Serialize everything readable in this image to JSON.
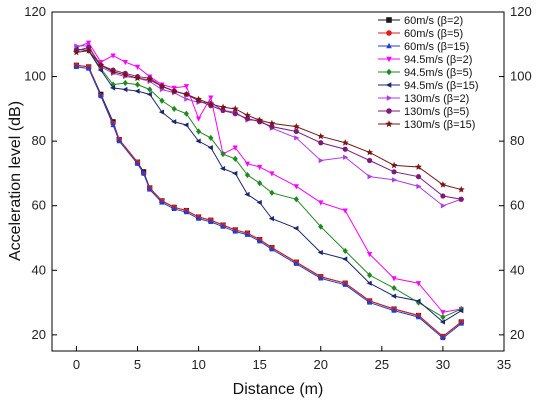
{
  "chart_data": {
    "type": "line",
    "title": "",
    "xlabel": "Distance (m)",
    "ylabel": "Acceleration level (dB)",
    "xlim": [
      -2,
      35
    ],
    "ylim": [
      15,
      120
    ],
    "xticks": [
      0,
      5,
      10,
      15,
      20,
      25,
      30,
      35
    ],
    "yticks": [
      20,
      40,
      60,
      80,
      100,
      120
    ],
    "grid": false,
    "legend_position": "top-right",
    "right_axis_mirrored": true,
    "series": [
      {
        "name": "60m/s (β=2)",
        "color": "#1a1a1a",
        "marker": "square",
        "x": [
          0,
          1,
          2,
          3,
          3.5,
          5,
          5.5,
          6,
          7,
          8,
          9,
          10,
          11,
          12,
          13,
          14,
          15,
          16,
          18,
          20,
          22,
          24,
          26,
          28,
          30,
          31.5
        ],
        "y": [
          103.5,
          103,
          94.5,
          86,
          80.5,
          73.5,
          70.5,
          65.5,
          61.5,
          59.5,
          58.5,
          56.5,
          55.5,
          54,
          52.5,
          51.5,
          49.5,
          47,
          42.5,
          38,
          36,
          30.5,
          28,
          26,
          19.5,
          24
        ]
      },
      {
        "name": "60m/s (β=5)",
        "color": "#e31a1c",
        "marker": "circle",
        "x": [
          0,
          1,
          2,
          3,
          3.5,
          5,
          5.5,
          6,
          7,
          8,
          9,
          10,
          11,
          12,
          13,
          14,
          15,
          16,
          18,
          20,
          22,
          24,
          26,
          28,
          30,
          31.5
        ],
        "y": [
          103.5,
          103,
          94,
          85.5,
          80.5,
          73.5,
          70,
          65.5,
          61.5,
          59.5,
          58.5,
          56.5,
          55.5,
          54,
          52.5,
          51.5,
          49.5,
          47,
          42.5,
          38,
          36,
          30.5,
          28,
          26,
          19.5,
          24
        ]
      },
      {
        "name": "60m/s (β=15)",
        "color": "#1f3fd6",
        "marker": "triangle-up",
        "x": [
          0,
          1,
          2,
          3,
          3.5,
          5,
          5.5,
          6,
          7,
          8,
          9,
          10,
          11,
          12,
          13,
          14,
          15,
          16,
          18,
          20,
          22,
          24,
          26,
          28,
          30,
          31.5
        ],
        "y": [
          103,
          102.5,
          94,
          85,
          80,
          73,
          70,
          65,
          61,
          59,
          58,
          56,
          55,
          53.5,
          52,
          51,
          49,
          46.5,
          42,
          37.5,
          35.5,
          30,
          27.5,
          25.5,
          19,
          23.5
        ]
      },
      {
        "name": "94.5m/s (β=2)",
        "color": "#ff00ff",
        "marker": "triangle-down",
        "x": [
          0,
          1,
          2,
          3,
          4,
          5,
          6,
          7,
          8,
          9,
          10,
          11,
          12,
          13,
          14,
          15,
          16,
          18,
          20,
          22,
          24,
          26,
          28,
          30,
          31.5
        ],
        "y": [
          109,
          110.5,
          104.5,
          106.5,
          104.5,
          103,
          100,
          97.5,
          96.5,
          97,
          87,
          93.5,
          76,
          78,
          73,
          72,
          70,
          66,
          61,
          58.5,
          45,
          37.5,
          36,
          27,
          28
        ]
      },
      {
        "name": "94.5m/s (β=5)",
        "color": "#1f8a1f",
        "marker": "diamond",
        "x": [
          0,
          1,
          2,
          3,
          4,
          5,
          6,
          7,
          8,
          9,
          10,
          11,
          12,
          13,
          14,
          15,
          16,
          18,
          20,
          22,
          24,
          26,
          28,
          30,
          31.5
        ],
        "y": [
          108.5,
          108,
          102.5,
          97.5,
          98,
          97.5,
          96,
          92.5,
          90,
          88.5,
          83,
          81,
          76,
          74.5,
          69.5,
          67,
          64,
          62,
          53.5,
          46,
          38.5,
          34.5,
          30,
          25.5,
          28
        ]
      },
      {
        "name": "94.5m/s (β=15)",
        "color": "#1c2770",
        "marker": "triangle-left",
        "x": [
          0,
          1,
          2,
          3,
          4,
          5,
          6,
          7,
          8,
          9,
          10,
          11,
          12,
          13,
          14,
          15,
          16,
          18,
          20,
          22,
          24,
          26,
          28,
          30,
          31.5
        ],
        "y": [
          108.5,
          108,
          102,
          96.5,
          96,
          95.5,
          94.5,
          89,
          86,
          85,
          80,
          78,
          71.5,
          70,
          63.5,
          61,
          56,
          53,
          45.5,
          43.5,
          36,
          32,
          30.5,
          24,
          27.5
        ]
      },
      {
        "name": "130m/s (β=2)",
        "color": "#b03be8",
        "marker": "triangle-right",
        "x": [
          0,
          1,
          2,
          3,
          4,
          5,
          6,
          7,
          8,
          9,
          10,
          11,
          12,
          13,
          14,
          15,
          16,
          18,
          20,
          22,
          24,
          26,
          28,
          30,
          31.5
        ],
        "y": [
          109.5,
          109.5,
          103,
          101,
          100,
          99.5,
          98.5,
          96,
          95,
          93,
          92,
          92,
          89.5,
          89,
          86.5,
          86.5,
          84,
          81,
          74,
          75,
          69,
          68,
          66,
          60,
          62
        ]
      },
      {
        "name": "130m/s (β=5)",
        "color": "#7b1a7b",
        "marker": "circle",
        "x": [
          0,
          1,
          2,
          3,
          4,
          5,
          6,
          7,
          8,
          9,
          10,
          11,
          12,
          13,
          14,
          15,
          16,
          18,
          20,
          22,
          24,
          26,
          28,
          30,
          31.5
        ],
        "y": [
          108,
          109,
          103.5,
          102,
          101,
          100,
          99.5,
          97,
          95.5,
          94.5,
          92.5,
          91,
          89.5,
          88.5,
          87,
          86,
          84.5,
          83,
          79.5,
          77.5,
          74,
          70.5,
          69,
          63,
          62
        ]
      },
      {
        "name": "130m/s (β=15)",
        "color": "#7a1515",
        "marker": "star",
        "x": [
          0,
          1,
          2,
          3,
          4,
          5,
          6,
          7,
          8,
          9,
          10,
          11,
          12,
          13,
          14,
          15,
          16,
          18,
          20,
          22,
          24,
          26,
          28,
          30,
          31.5
        ],
        "y": [
          107.5,
          108,
          103.5,
          101.5,
          100.5,
          99.5,
          99,
          97,
          95.5,
          94.5,
          93,
          91.5,
          90.5,
          90,
          88,
          86.5,
          85.5,
          84.5,
          81.5,
          79.5,
          76.5,
          72.5,
          72,
          66.5,
          65
        ]
      }
    ]
  }
}
